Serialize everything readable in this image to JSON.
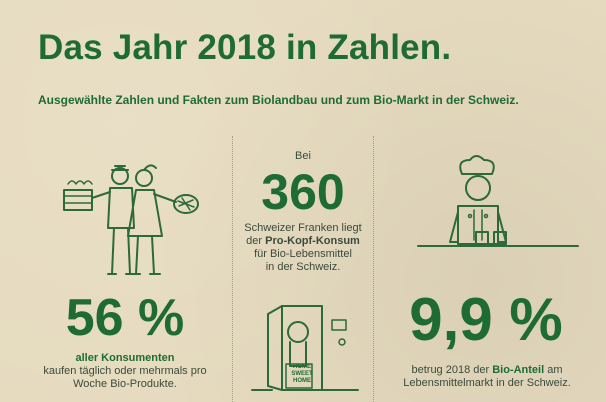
{
  "header": {
    "title": "Das Jahr 2018 in Zahlen.",
    "subtitle": "Ausgewählte Zahlen und Fakten zum Biolandbau und zum Bio-Markt in der Schweiz."
  },
  "middle": {
    "prefix": "Bei",
    "value": "360",
    "line1": "Schweizer Franken liegt",
    "line2_pre": "der ",
    "line2_bold": "Pro-Kopf-Konsum",
    "line3": "für Bio-Lebensmittel",
    "line4": "in der Schweiz.",
    "illustration_text_1": "HOME",
    "illustration_text_2": "SWEET",
    "illustration_text_3": "HOME"
  },
  "left": {
    "value": "56 %",
    "bold_line": "aller Konsumenten",
    "line2": "kaufen täglich oder mehrmals pro",
    "line3": "Woche Bio-Produkte."
  },
  "right": {
    "value": "9,9 %",
    "line1_pre": "betrug 2018 der ",
    "line1_bold": "Bio-Anteil",
    "line1_post": " am",
    "line2": "Lebensmittelmarkt in der Schweiz."
  }
}
